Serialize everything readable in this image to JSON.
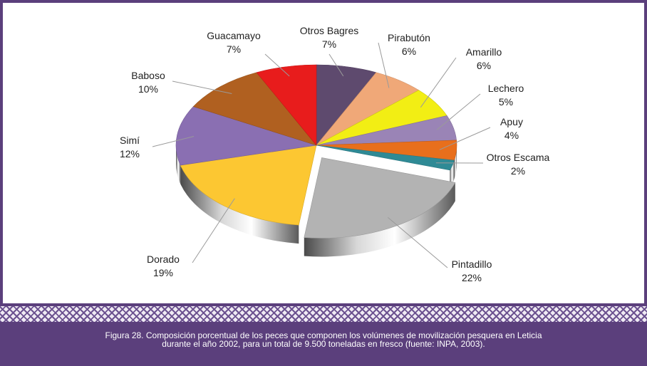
{
  "chart_data": {
    "type": "pie",
    "title": "",
    "categories": [
      "Otros Bagres",
      "Pirabutón",
      "Amarillo",
      "Lechero",
      "Apuy",
      "Otros Escama",
      "Pintadillo",
      "Dorado",
      "Simí",
      "Baboso",
      "Guacamayo"
    ],
    "values": [
      7,
      6,
      6,
      5,
      4,
      2,
      22,
      19,
      12,
      10,
      7
    ],
    "value_labels": [
      "7%",
      "6%",
      "6%",
      "5%",
      "4%",
      "2%",
      "22%",
      "19%",
      "12%",
      "10%",
      "7%"
    ],
    "colors": [
      "#5e4a6e",
      "#f0a878",
      "#f2ee14",
      "#9a84b6",
      "#e86f1c",
      "#2f8a95",
      "#b3b3b3",
      "#fcc732",
      "#8a6fb2",
      "#b06020",
      "#e81c1c"
    ],
    "exploded": [
      "Pintadillo"
    ],
    "style": "3d-exploded",
    "legend": "none"
  },
  "caption": {
    "line1": "Figura 28. Composición porcentual de los peces que componen los volúmenes de movilización pesquera en Leticia",
    "line2": "durante el año 2002, para un total de 9.500 toneladas en fresco (fuente: INPA, 2003)."
  }
}
